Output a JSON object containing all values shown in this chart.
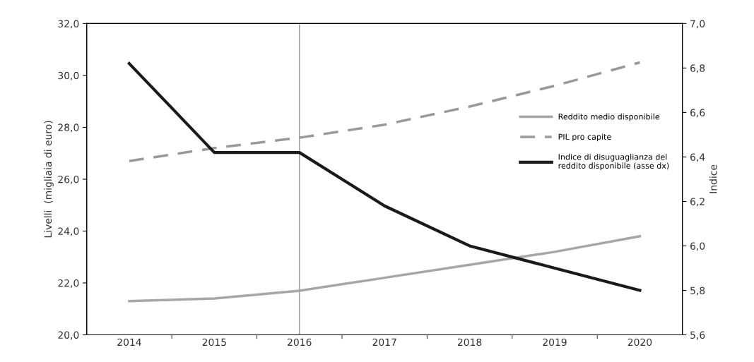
{
  "chart_data": {
    "type": "line",
    "ylabel": "Livelli  (migliaia di euro)",
    "y2label": "Indice",
    "categories": [
      "2014",
      "2015",
      "2016",
      "2017",
      "2018",
      "2019",
      "2020"
    ],
    "series": [
      {
        "name": "Reddito medio disponibile",
        "color": "#a6a6a6",
        "line_style": "solid",
        "values": [
          21.3,
          21.4,
          21.7,
          22.2,
          22.7,
          23.2,
          23.8
        ]
      },
      {
        "name": "PIL pro capite",
        "color": "#999999",
        "line_style": "dashed",
        "values": [
          26.7,
          27.2,
          27.6,
          28.1,
          28.8,
          29.6,
          30.5
        ]
      },
      {
        "name": "Indice di disuguaglianza del\nreddito disponibile (asse dx)",
        "color": "#1a1a1a",
        "line_style": "solid",
        "axis": "y2",
        "values": [
          6.82,
          6.42,
          6.42,
          6.18,
          6.0,
          5.9,
          5.8
        ]
      }
    ],
    "ylim": [
      20,
      32
    ],
    "yticks": [
      {
        "value": 20,
        "label": "20,0"
      },
      {
        "value": 22,
        "label": "22,0"
      },
      {
        "value": 24,
        "label": "24,0"
      },
      {
        "value": 26,
        "label": "26,0"
      },
      {
        "value": 28,
        "label": "28,0"
      },
      {
        "value": 30,
        "label": "30,0"
      },
      {
        "value": 32,
        "label": "32,0"
      }
    ],
    "y2lim": [
      5.6,
      7.0
    ],
    "y2ticks": [
      {
        "value": 5.6,
        "label": "5,6"
      },
      {
        "value": 5.8,
        "label": "5,8"
      },
      {
        "value": 6.0,
        "label": "6,0"
      },
      {
        "value": 6.2,
        "label": "6,2"
      },
      {
        "value": 6.4,
        "label": "6,4"
      },
      {
        "value": 6.6,
        "label": "6,6"
      },
      {
        "value": 6.8,
        "label": "6,8"
      },
      {
        "value": 7.0,
        "label": "7,0"
      }
    ],
    "ref_lines": [
      {
        "axis": "x",
        "value": "2016",
        "color": "#808080",
        "line_style": "solid"
      }
    ],
    "grid": false,
    "legend": "right",
    "marker": "none"
  }
}
